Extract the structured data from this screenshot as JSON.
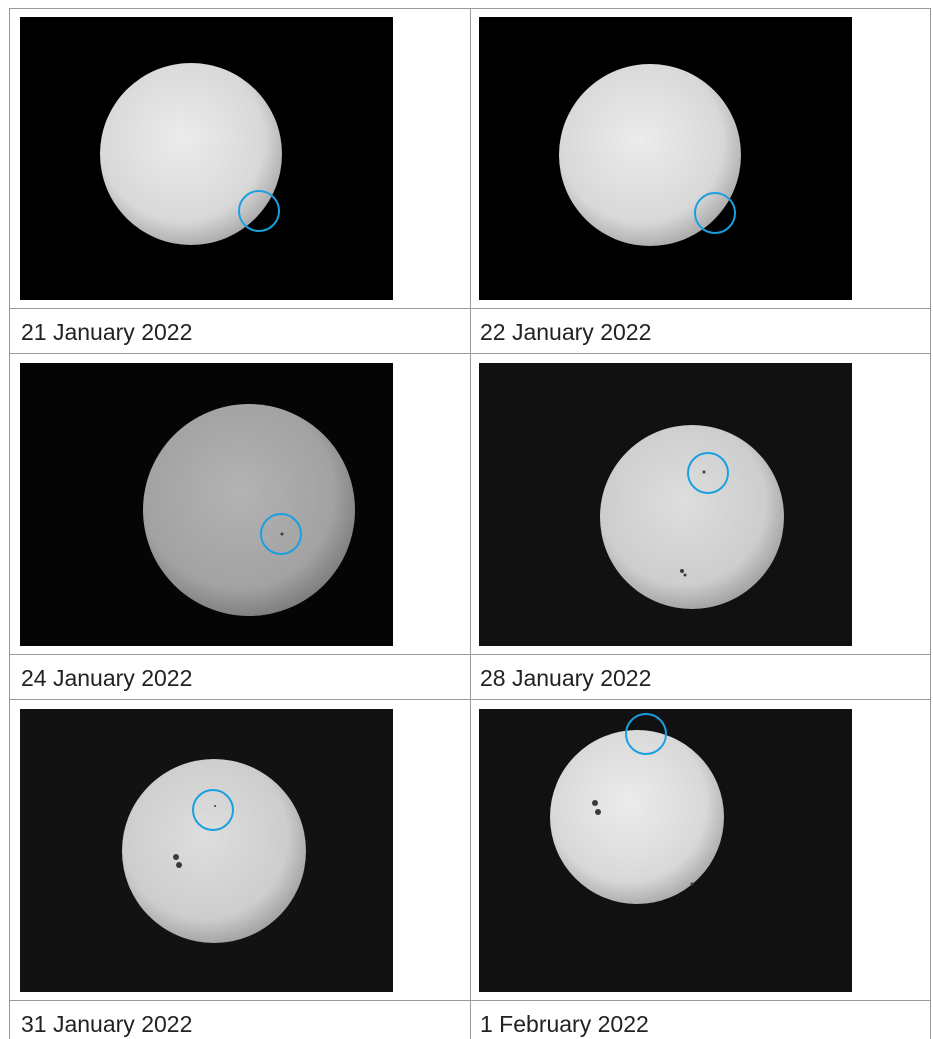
{
  "table": {
    "captions": [
      "21 January 2022",
      "22 January 2022",
      "24 January 2022",
      "28 January 2022",
      "31 January 2022",
      "1 February 2022"
    ]
  }
}
